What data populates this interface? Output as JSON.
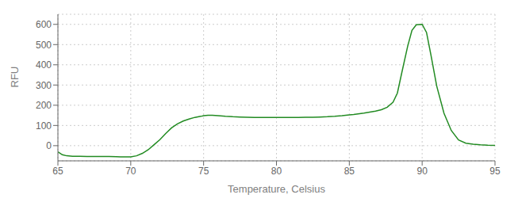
{
  "chart_data": {
    "type": "line",
    "xlabel": "Temperature, Celsius",
    "ylabel": "RFU",
    "color": "#228B22",
    "grid": true,
    "xlim": [
      65,
      95
    ],
    "ylim": [
      -75,
      650
    ],
    "xticks": [
      65,
      70,
      75,
      80,
      85,
      90,
      95
    ],
    "yticks": [
      0,
      100,
      200,
      300,
      400,
      500,
      600
    ],
    "x": [
      65.0,
      65.3,
      65.6,
      66.0,
      66.5,
      67.0,
      67.5,
      68.0,
      68.5,
      69.0,
      69.3,
      69.6,
      70.0,
      70.4,
      70.8,
      71.2,
      71.6,
      72.0,
      72.4,
      72.8,
      73.2,
      73.6,
      74.0,
      74.4,
      74.8,
      75.0,
      75.3,
      75.6,
      76.0,
      76.5,
      77.0,
      77.5,
      78.0,
      78.5,
      79.0,
      79.5,
      80.0,
      80.5,
      81.0,
      81.5,
      82.0,
      82.5,
      83.0,
      83.5,
      84.0,
      84.5,
      85.0,
      85.3,
      85.6,
      86.0,
      86.4,
      86.8,
      87.2,
      87.6,
      88.0,
      88.3,
      88.6,
      89.0,
      89.3,
      89.6,
      90.0,
      90.3,
      90.6,
      91.0,
      91.5,
      92.0,
      92.5,
      93.0,
      93.5,
      94.0,
      94.5,
      95.0
    ],
    "values": [
      -30,
      -45,
      -50,
      -52,
      -52,
      -53,
      -53,
      -53,
      -53,
      -54,
      -55,
      -55,
      -55,
      -50,
      -38,
      -20,
      5,
      30,
      60,
      88,
      108,
      122,
      132,
      140,
      145,
      148,
      150,
      150,
      148,
      145,
      143,
      142,
      141,
      140,
      140,
      140,
      140,
      140,
      140,
      140,
      141,
      141,
      142,
      143,
      145,
      148,
      152,
      154,
      157,
      161,
      166,
      171,
      178,
      190,
      215,
      260,
      360,
      490,
      570,
      598,
      600,
      560,
      450,
      295,
      160,
      75,
      28,
      12,
      7,
      4,
      2,
      1
    ]
  }
}
